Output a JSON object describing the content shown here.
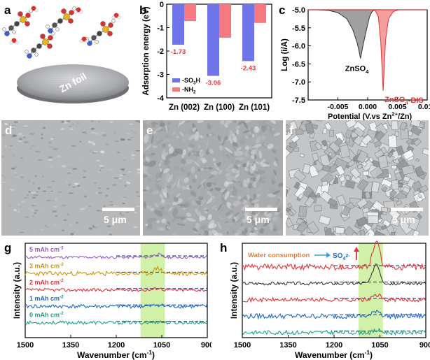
{
  "colors": {
    "blue": "#6f74e8",
    "red": "#f5797e",
    "red_text": "#e8383d",
    "green_band": "#c9ee9a",
    "gray_peak": "#6b6b6b",
    "sem_background": "#b4b6b8"
  },
  "panel_labels": {
    "a": "a",
    "b": "b",
    "c": "c",
    "d": "d",
    "e": "e",
    "f": "f",
    "g": "g",
    "h": "h"
  },
  "panel_a": {
    "foil_label": "Zn foil",
    "molecule_count": 4
  },
  "panel_d": {
    "scale_bar_label": "5 μm"
  },
  "panel_e": {
    "scale_bar_label": "5 μm"
  },
  "panel_f": {
    "scale_bar_label": "5 μm"
  },
  "chart_data": [
    {
      "id": "b",
      "type": "bar",
      "ylabel": "Adsorption energy (eV)",
      "ylim": [
        -4,
        0
      ],
      "yticks": [
        0,
        -1,
        -2,
        -3,
        -4
      ],
      "categories": [
        "Zn (002)",
        "Zn (100)",
        "Zn (101)"
      ],
      "series": [
        {
          "name": "-SO3H",
          "values": [
            -1.73,
            -3.06,
            -2.43
          ],
          "labels": [
            "-1.73",
            "-3.06",
            "-2.43"
          ]
        },
        {
          "name": "-NH2",
          "values": [
            -0.72,
            -1.43,
            -0.8
          ]
        }
      ],
      "legend": {
        "entries": [
          {
            "base": "-SO",
            "sub": "3",
            "tail": "H"
          },
          {
            "base": "-NH",
            "sub": "2",
            "tail": ""
          }
        ],
        "placement": "bottom-left"
      }
    },
    {
      "id": "c",
      "type": "area",
      "xlabel": "Potential (V.vs Zn2+/Zn)",
      "xlabel_parts": {
        "pre": "Potential (V.vs Zn",
        "sup": "2+",
        "post": "/Zn)"
      },
      "ylabel": "Log (i/A)",
      "xlim": [
        -0.01,
        0.01
      ],
      "ylim": [
        -7.5,
        -5.0
      ],
      "xticks": [
        "-0.005",
        "0.000",
        "0.005",
        "0.010"
      ],
      "yticks": [
        "-5.0",
        "-5.5",
        "-6.0",
        "-6.5",
        "-7.0",
        "-7.5"
      ],
      "series": [
        {
          "name": "ZnSO4",
          "label_parts": {
            "pre": "ZnSO",
            "sub": "4",
            "post": ""
          },
          "min_x": -0.0012,
          "min_y": -6.35,
          "x": [
            -0.0105,
            -0.0085,
            -0.0065,
            -0.005,
            -0.0035,
            -0.0025,
            -0.0017,
            -0.0012,
            -0.0008,
            -0.0002,
            0.0003,
            0.0007,
            0.0011
          ],
          "y": [
            -5.0,
            -5.0,
            -5.02,
            -5.08,
            -5.25,
            -5.55,
            -5.95,
            -6.35,
            -6.0,
            -5.55,
            -5.2,
            -5.06,
            -5.0
          ]
        },
        {
          "name": "ZnSO4-BIS",
          "label_parts": {
            "pre": "ZnSO",
            "sub": "4",
            "post": "-BIS"
          },
          "min_x": 0.0026,
          "min_y": -7.25,
          "x": [
            0.0008,
            0.0013,
            0.0018,
            0.0022,
            0.0026,
            0.003,
            0.0035,
            0.0043,
            0.0052
          ],
          "y": [
            -5.0,
            -5.03,
            -5.2,
            -5.9,
            -7.25,
            -5.85,
            -5.25,
            -5.05,
            -5.0
          ]
        }
      ]
    },
    {
      "id": "g",
      "type": "line",
      "xlabel": "Wavenumber (cm-1)",
      "xlabel_parts": {
        "pre": "Wavenumber (cm",
        "sup": "-1",
        "post": ")"
      },
      "ylabel": "Intensity (a.u.)",
      "xlim": [
        1500,
        900
      ],
      "xticks": [
        1500,
        1350,
        1200,
        1050,
        900
      ],
      "highlight_band": [
        1040,
        1120
      ],
      "series": [
        {
          "name": "5 mAh cm-2",
          "label_parts": {
            "pre": "5 mAh cm",
            "sup": "-2"
          },
          "color": "#9b59c4",
          "peak": 1065,
          "peak_height": 0.5,
          "noise": 0.22,
          "seed": 11
        },
        {
          "name": "3 mAh cm-2",
          "label_parts": {
            "pre": "3 mAh cm",
            "sup": "-2"
          },
          "color": "#c9970e",
          "peak": 1063,
          "peak_height": 0.9,
          "noise": 0.35,
          "seed": 23
        },
        {
          "name": "2 mAh cm-2",
          "label_parts": {
            "pre": "2 mAh cm",
            "sup": "-2"
          },
          "color": "#e0343b",
          "peak": 1062,
          "peak_height": 0.3,
          "noise": 0.25,
          "seed": 37
        },
        {
          "name": "1 mAh cm-2",
          "label_parts": {
            "pre": "1 mAh cm",
            "sup": "-2"
          },
          "color": "#1f68c9",
          "peak": 1062,
          "peak_height": 0.25,
          "noise": 0.3,
          "seed": 41
        },
        {
          "name": "0 mAh cm-2",
          "label_parts": {
            "pre": "0 mAh cm",
            "sup": "-2"
          },
          "color": "#17a388",
          "peak": 1060,
          "peak_height": 0.15,
          "noise": 0.28,
          "seed": 53
        }
      ]
    },
    {
      "id": "h",
      "type": "line",
      "xlabel": "Wavenumber (cm-1)",
      "xlabel_parts": {
        "pre": "Wavenumber (cm",
        "sup": "-1",
        "post": ")"
      },
      "ylabel": "Intensity (a.u.)",
      "xlim": [
        1500,
        900
      ],
      "xticks": [
        1500,
        1350,
        1200,
        1050,
        900
      ],
      "highlight_band": [
        1040,
        1120
      ],
      "annotation": {
        "text": "Water consumption",
        "target_pre": "SO",
        "target_sub": "4",
        "target_sup": "2-"
      },
      "series": [
        {
          "color": "#e0343b",
          "peak": 1062,
          "peak_height": 3.0,
          "noise": 0.35,
          "seed": 61
        },
        {
          "color": "#3a3a3a",
          "peak": 1062,
          "peak_height": 2.4,
          "noise": 0.2,
          "seed": 67
        },
        {
          "color": "#e0343b",
          "peak": 1060,
          "peak_height": 0.6,
          "noise": 0.25,
          "seed": 71
        },
        {
          "color": "#1f68c9",
          "peak": 1060,
          "peak_height": 0.7,
          "noise": 0.3,
          "seed": 79
        },
        {
          "color": "#17a388",
          "peak": 1058,
          "peak_height": 0.25,
          "noise": 0.25,
          "seed": 83
        }
      ]
    }
  ]
}
